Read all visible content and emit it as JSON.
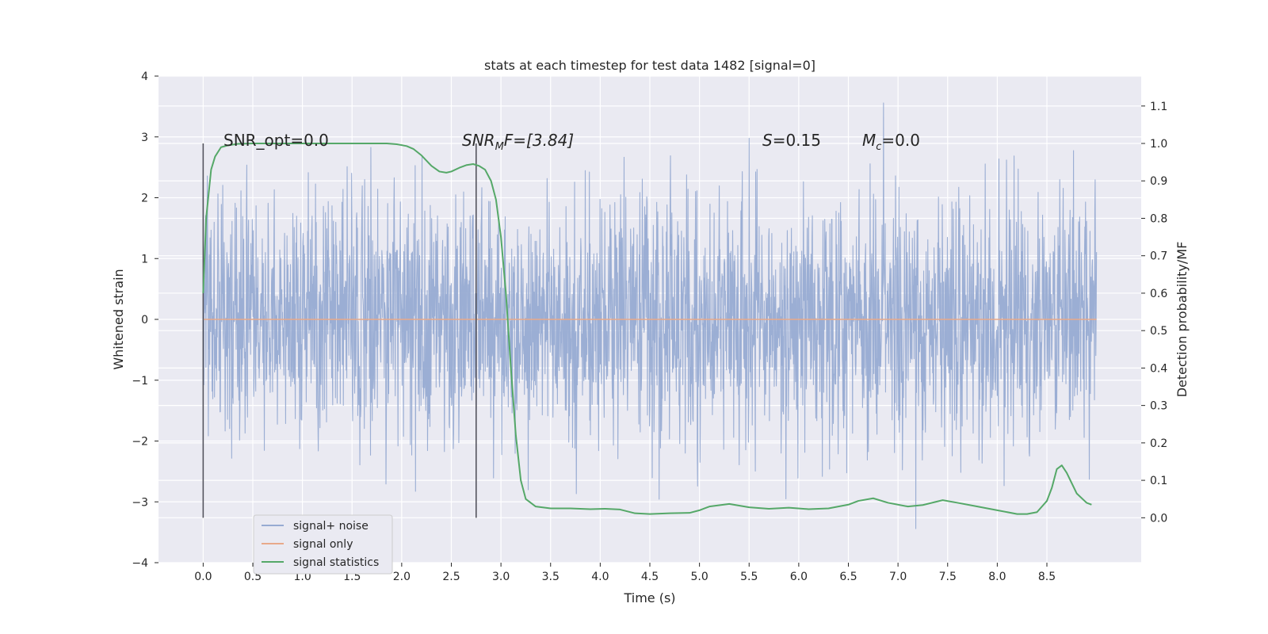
{
  "chart_data": {
    "type": "line",
    "title": "stats at each timestep for test data 1482 [signal=0]",
    "xlabel": "Time (s)",
    "ylabel": "Whitened strain",
    "y2label": "Detection probability/MF",
    "xlim": [
      -0.45,
      9.45
    ],
    "ylim": [
      -4.0,
      4.0
    ],
    "y2lim": [
      -0.12,
      1.18
    ],
    "x_ticks": [
      "0.0",
      "0.5",
      "1.0",
      "1.5",
      "2.0",
      "2.5",
      "3.0",
      "3.5",
      "4.0",
      "4.5",
      "5.0",
      "5.5",
      "6.0",
      "6.5",
      "7.0",
      "7.5",
      "8.0",
      "8.5"
    ],
    "y_ticks": [
      "−4",
      "−3",
      "−2",
      "−1",
      "0",
      "1",
      "2",
      "3",
      "4"
    ],
    "y2_ticks": [
      "0.0",
      "0.1",
      "0.2",
      "0.3",
      "0.4",
      "0.5",
      "0.6",
      "0.7",
      "0.8",
      "0.9",
      "1.0",
      "1.1"
    ],
    "grid": true,
    "legend_position": "lower-left",
    "annotations": {
      "snr_opt": "SNR_opt=0.0",
      "snr_mf_base": "SNR",
      "snr_mf_sub": "M",
      "snr_mf_rest": "F=[3.84]",
      "s_base": "S",
      "s_rest": "=0.15",
      "mc_base": "M",
      "mc_sub": "c",
      "mc_rest": "=0.0"
    },
    "vertical_markers": [
      0.0,
      2.75
    ],
    "series": [
      {
        "name": "signal+ noise",
        "color": "#97abd2",
        "x_range": [
          0.0,
          9.0
        ],
        "amplitude_envelope": [
          -3.6,
          4.0
        ]
      },
      {
        "name": "signal only",
        "color": "#e8a98a",
        "x": [
          0.0,
          9.0
        ],
        "y": [
          0.0,
          0.0
        ]
      },
      {
        "name": "signal statistics",
        "color": "#55a868",
        "axis": "right",
        "x": [
          0.0,
          0.03,
          0.08,
          0.12,
          0.18,
          0.25,
          0.35,
          0.5,
          0.8,
          1.2,
          1.6,
          1.85,
          1.95,
          2.05,
          2.12,
          2.2,
          2.3,
          2.38,
          2.45,
          2.5,
          2.58,
          2.65,
          2.72,
          2.78,
          2.84,
          2.9,
          2.95,
          3.0,
          3.05,
          3.1,
          3.15,
          3.2,
          3.25,
          3.35,
          3.5,
          3.7,
          3.9,
          4.05,
          4.2,
          4.35,
          4.5,
          4.7,
          4.9,
          5.0,
          5.1,
          5.3,
          5.5,
          5.7,
          5.9,
          6.1,
          6.3,
          6.5,
          6.6,
          6.75,
          6.9,
          7.1,
          7.25,
          7.45,
          7.6,
          7.8,
          8.0,
          8.2,
          8.3,
          8.4,
          8.5,
          8.55,
          8.6,
          8.65,
          8.7,
          8.8,
          8.9,
          8.95
        ],
        "y": [
          0.6,
          0.8,
          0.93,
          0.965,
          0.99,
          0.995,
          0.999,
          1.0,
          1.0,
          1.0,
          1.0,
          1.0,
          0.998,
          0.993,
          0.985,
          0.968,
          0.94,
          0.925,
          0.922,
          0.925,
          0.935,
          0.942,
          0.945,
          0.94,
          0.93,
          0.9,
          0.85,
          0.75,
          0.6,
          0.4,
          0.22,
          0.1,
          0.05,
          0.03,
          0.025,
          0.025,
          0.023,
          0.024,
          0.022,
          0.012,
          0.01,
          0.012,
          0.013,
          0.02,
          0.03,
          0.037,
          0.028,
          0.024,
          0.027,
          0.023,
          0.025,
          0.035,
          0.045,
          0.052,
          0.04,
          0.03,
          0.034,
          0.047,
          0.04,
          0.03,
          0.02,
          0.01,
          0.01,
          0.015,
          0.045,
          0.08,
          0.13,
          0.14,
          0.12,
          0.065,
          0.04,
          0.035
        ]
      }
    ]
  }
}
